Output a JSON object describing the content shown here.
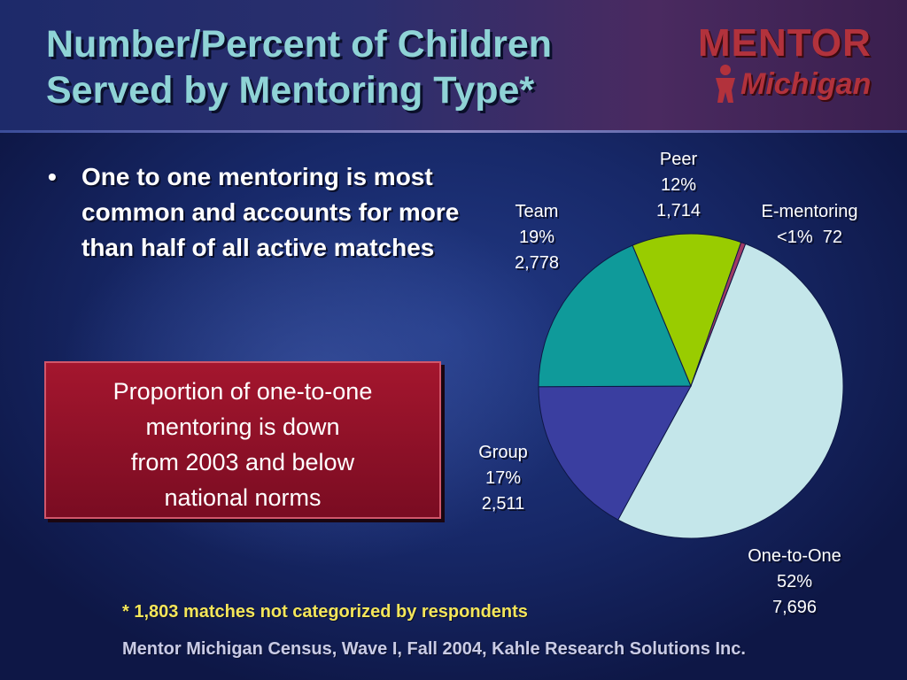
{
  "slide": {
    "title_line1": "Number/Percent of Children",
    "title_line2": "Served by Mentoring Type*",
    "logo_top": "MENTOR",
    "logo_bottom": "Michigan",
    "bullet_symbol": "•",
    "bullet_text": "One to one mentoring is most common and accounts for more than half of all active matches",
    "callout_line1": "Proportion of one-to-one",
    "callout_line2": "mentoring is down",
    "callout_line3": "from 2003 and below",
    "callout_line4": "national norms",
    "footnote": "* 1,803 matches not categorized by respondents",
    "source": "Mentor Michigan Census, Wave I, Fall 2004, Kahle Research Solutions Inc."
  },
  "colors": {
    "one_to_one": "#c4e6ea",
    "group": "#3a3ea0",
    "team": "#0f9a9a",
    "peer": "#99cc00",
    "e_mentoring": "#a03a66",
    "title": "#8fd3d6",
    "callout": "#a4162e"
  },
  "chart_data": {
    "type": "pie",
    "title": "",
    "slices": [
      {
        "name": "One-to-One",
        "percent_label": "52%",
        "count_label": "7,696",
        "value": 7696
      },
      {
        "name": "Group",
        "percent_label": "17%",
        "count_label": "2,511",
        "value": 2511
      },
      {
        "name": "Team",
        "percent_label": "19%",
        "count_label": "2,778",
        "value": 2778
      },
      {
        "name": "Peer",
        "percent_label": "12%",
        "count_label": "1,714",
        "value": 1714
      },
      {
        "name": "E-mentoring",
        "percent_label": "<1%",
        "count_label": "72",
        "value": 72
      }
    ]
  }
}
